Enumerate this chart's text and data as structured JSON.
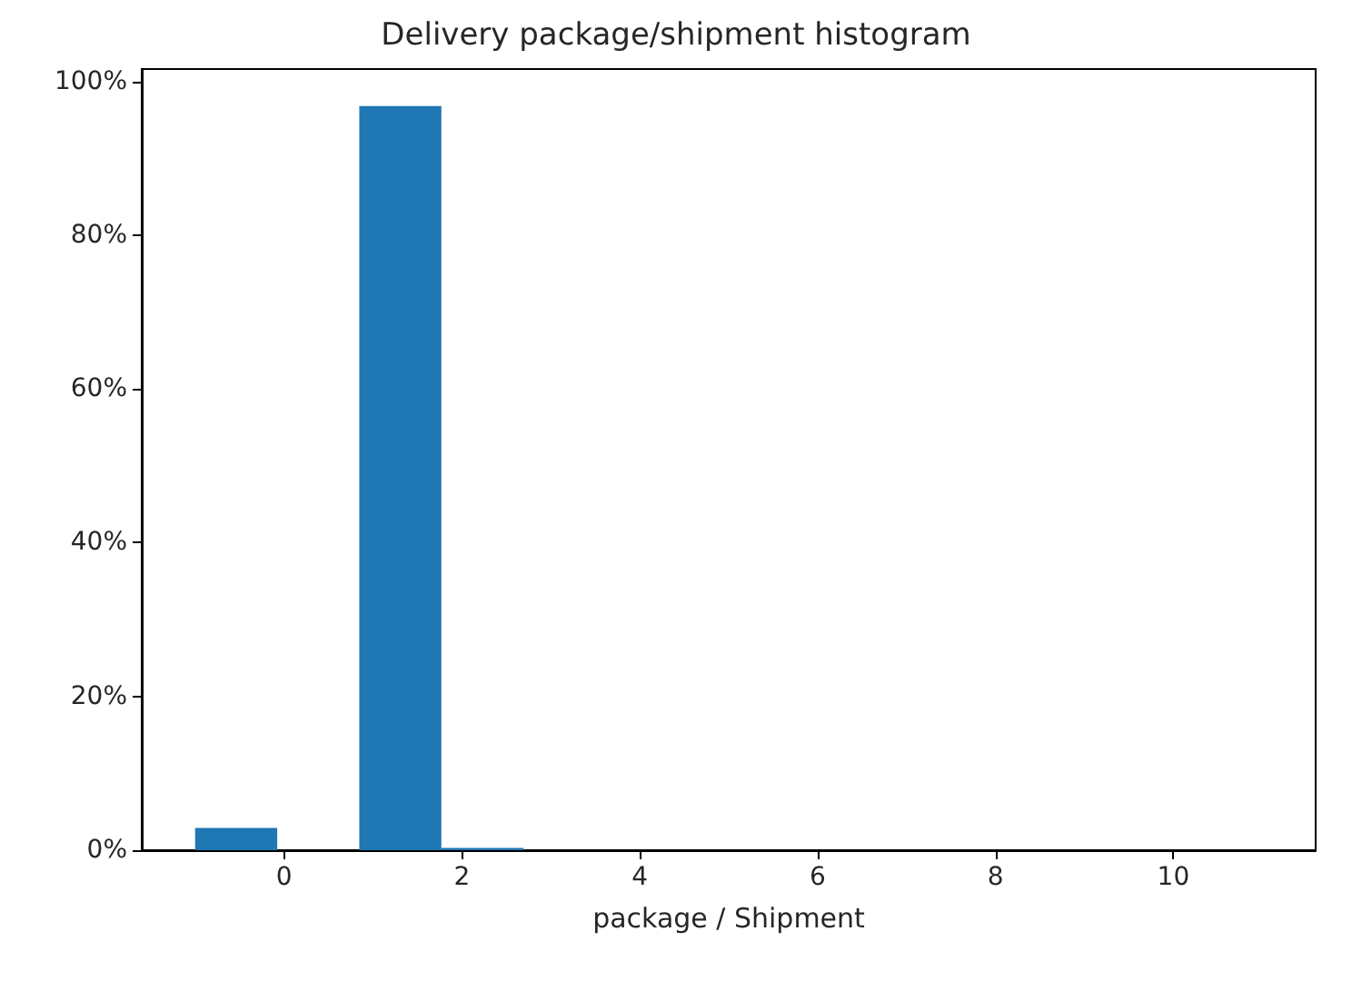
{
  "chart_data": {
    "type": "histogram",
    "title": "Delivery package/shipment histogram",
    "xlabel": "package / Shipment",
    "bins": [
      -1,
      -0.0769,
      0.8462,
      1.7692,
      2.6923,
      3.6154,
      4.5385,
      5.4615,
      6.3846,
      7.3077,
      8.2308,
      9.1538,
      10.0769,
      11
    ],
    "values": [
      2.9,
      0,
      96.8,
      0.3,
      0,
      0,
      0,
      0,
      0,
      0,
      0,
      0,
      0
    ],
    "color": "#1f77b4",
    "xlim": [
      -1.6,
      11.6
    ],
    "xticks": [
      0,
      2,
      4,
      6,
      8,
      10
    ],
    "ylim": [
      0,
      101.6
    ],
    "yticks": [
      {
        "value": 0,
        "label": "0%"
      },
      {
        "value": 20,
        "label": "20%"
      },
      {
        "value": 40,
        "label": "40%"
      },
      {
        "value": 60,
        "label": "60%"
      },
      {
        "value": 80,
        "label": "80%"
      },
      {
        "value": 100,
        "label": "100%"
      }
    ],
    "grid": false
  }
}
